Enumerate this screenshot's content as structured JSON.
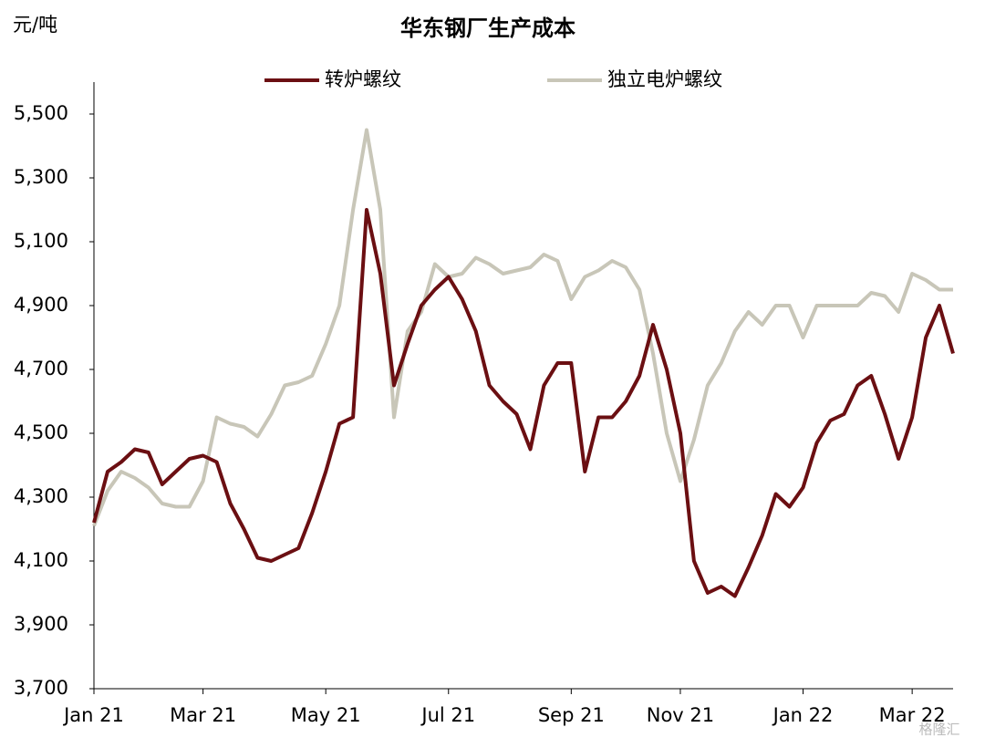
{
  "chart_data": {
    "type": "line",
    "title": "华东钢厂生产成本",
    "y_label": "元/吨",
    "watermark": "格隆汇",
    "categories": [
      "Jan 21",
      null,
      null,
      null,
      null,
      null,
      null,
      null,
      "Mar 21",
      null,
      null,
      null,
      null,
      null,
      null,
      null,
      null,
      "May 21",
      null,
      null,
      null,
      null,
      null,
      null,
      null,
      null,
      "Jul 21",
      null,
      null,
      null,
      null,
      null,
      null,
      null,
      null,
      "Sep 21",
      null,
      null,
      null,
      null,
      null,
      null,
      null,
      "Nov 21",
      null,
      null,
      null,
      null,
      null,
      null,
      null,
      null,
      "Jan 22",
      null,
      null,
      null,
      null,
      null,
      null,
      null,
      "Mar 22",
      null,
      null,
      null
    ],
    "series": [
      {
        "name": "转炉螺纹",
        "color": "#6b0f12",
        "values": [
          4220,
          4380,
          4410,
          4450,
          4440,
          4340,
          4380,
          4420,
          4430,
          4410,
          4280,
          4200,
          4110,
          4100,
          4120,
          4140,
          4250,
          4380,
          4530,
          4550,
          5200,
          5000,
          4650,
          4780,
          4900,
          4950,
          4990,
          4920,
          4820,
          4650,
          4600,
          4560,
          4450,
          4650,
          4720,
          4720,
          4380,
          4550,
          4550,
          4600,
          4680,
          4840,
          4700,
          4500,
          4100,
          4000,
          4020,
          3990,
          4080,
          4180,
          4310,
          4270,
          4330,
          4470,
          4540,
          4560,
          4650,
          4680,
          4560,
          4420,
          4550,
          4800,
          4900,
          4750
        ]
      },
      {
        "name": "独立电炉螺纹",
        "color": "#c8c6b8",
        "values": [
          4210,
          4320,
          4380,
          4360,
          4330,
          4280,
          4270,
          4270,
          4350,
          4550,
          4530,
          4520,
          4490,
          4560,
          4650,
          4660,
          4680,
          4780,
          4900,
          5200,
          5450,
          5200,
          4550,
          4820,
          4880,
          5030,
          4990,
          5000,
          5050,
          5030,
          5000,
          5010,
          5020,
          5060,
          5040,
          4920,
          4990,
          5010,
          5040,
          5020,
          4950,
          4750,
          4500,
          4350,
          4480,
          4650,
          4720,
          4820,
          4880,
          4840,
          4900,
          4900,
          4800,
          4900,
          4900,
          4900,
          4900,
          4940,
          4930,
          4880,
          5000,
          4980,
          4950,
          4950
        ]
      }
    ],
    "ylim": [
      3700,
      5600
    ],
    "yticks": [
      {
        "value": 3700,
        "label": "3,700"
      },
      {
        "value": 3900,
        "label": "3,900"
      },
      {
        "value": 4100,
        "label": "4,100"
      },
      {
        "value": 4300,
        "label": "4,300"
      },
      {
        "value": 4500,
        "label": "4,500"
      },
      {
        "value": 4700,
        "label": "4,700"
      },
      {
        "value": 4900,
        "label": "4,900"
      },
      {
        "value": 5100,
        "label": "5,100"
      },
      {
        "value": 5300,
        "label": "5,300"
      },
      {
        "value": 5500,
        "label": "5,500"
      }
    ],
    "grid": false,
    "legend": "top"
  }
}
